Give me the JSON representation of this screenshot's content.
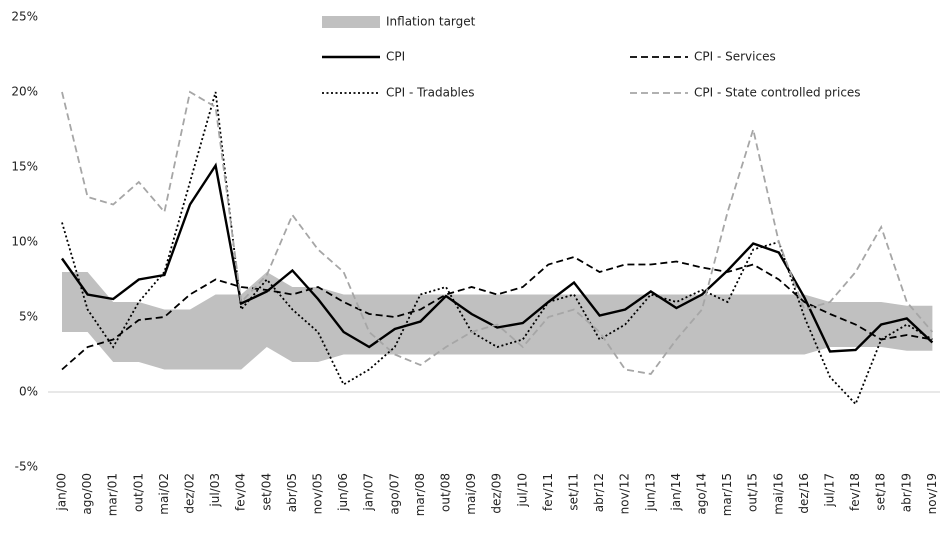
{
  "chart_data": {
    "type": "line",
    "categories": [
      "jan/00",
      "ago/00",
      "mar/01",
      "out/01",
      "mai/02",
      "dez/02",
      "jul/03",
      "fev/04",
      "set/04",
      "abr/05",
      "nov/05",
      "jun/06",
      "jan/07",
      "ago/07",
      "mar/08",
      "out/08",
      "mai/09",
      "dez/09",
      "jul/10",
      "fev/11",
      "set/11",
      "abr/12",
      "nov/12",
      "jun/13",
      "jan/14",
      "ago/14",
      "mar/15",
      "out/15",
      "mai/16",
      "dez/16",
      "jul/17",
      "fev/18",
      "set/18",
      "abr/19",
      "nov/19"
    ],
    "series": [
      {
        "name": "Inflation target",
        "color": "#c0c0c0",
        "kind": "band",
        "low": [
          4,
          4,
          2,
          2,
          1.5,
          1.5,
          1.5,
          1.5,
          3,
          2,
          2,
          2.5,
          2.5,
          2.5,
          2.5,
          2.5,
          2.5,
          2.5,
          2.5,
          2.5,
          2.5,
          2.5,
          2.5,
          2.5,
          2.5,
          2.5,
          2.5,
          2.5,
          2.5,
          2.5,
          3,
          3,
          3,
          2.75,
          2.75
        ],
        "high": [
          8,
          8,
          6,
          6,
          5.5,
          5.5,
          6.5,
          6.5,
          8,
          7,
          7,
          6.5,
          6.5,
          6.5,
          6.5,
          6.5,
          6.5,
          6.5,
          6.5,
          6.5,
          6.5,
          6.5,
          6.5,
          6.5,
          6.5,
          6.5,
          6.5,
          6.5,
          6.5,
          6.5,
          6,
          6,
          6,
          5.75,
          5.75
        ]
      },
      {
        "name": "CPI",
        "color": "#000000",
        "dash": "solid",
        "values": [
          8.9,
          6.5,
          6.2,
          7.5,
          7.8,
          12.5,
          15.1,
          5.9,
          6.7,
          8.1,
          6.2,
          4.0,
          3.0,
          4.2,
          4.7,
          6.4,
          5.2,
          4.3,
          4.6,
          6.0,
          7.3,
          5.1,
          5.5,
          6.7,
          5.6,
          6.5,
          8.1,
          9.9,
          9.3,
          6.3,
          2.7,
          2.8,
          4.5,
          4.9,
          3.3
        ]
      },
      {
        "name": "CPI - Services",
        "color": "#000000",
        "dash": "dashed",
        "values": [
          1.5,
          3.0,
          3.5,
          4.8,
          5.0,
          6.5,
          7.5,
          7.0,
          6.8,
          6.5,
          7.0,
          6.0,
          5.2,
          5.0,
          5.5,
          6.5,
          7.0,
          6.5,
          7.0,
          8.5,
          9.0,
          8.0,
          8.5,
          8.5,
          8.7,
          8.3,
          8.0,
          8.5,
          7.5,
          6.0,
          5.2,
          4.5,
          3.5,
          3.8,
          3.5
        ]
      },
      {
        "name": "CPI - Tradables",
        "color": "#000000",
        "dash": "dotted",
        "values": [
          11.3,
          5.5,
          3.0,
          6.0,
          8.0,
          14,
          20,
          5.5,
          7.5,
          5.5,
          4,
          0.5,
          1.5,
          3,
          6.5,
          7,
          4,
          3,
          3.5,
          6,
          6.5,
          3.5,
          4.5,
          6.5,
          6.0,
          6.8,
          6.0,
          9.5,
          10,
          5.0,
          1.0,
          -0.8,
          3.5,
          4.5,
          3.5
        ]
      },
      {
        "name": "CPI - State controlled prices",
        "color": "#a6a6a6",
        "dash": "dashed",
        "values": [
          20,
          13,
          12.5,
          14,
          12,
          20,
          19,
          6.0,
          7.8,
          11.8,
          9.5,
          8,
          4.0,
          2.5,
          1.8,
          3.0,
          4.0,
          4.5,
          3.0,
          5.0,
          5.5,
          4.0,
          1.5,
          1.2,
          3.5,
          5.5,
          12,
          17.5,
          10,
          5.5,
          6.0,
          8.0,
          11,
          6.0,
          4.0
        ]
      }
    ],
    "ylim": [
      -5,
      25
    ],
    "yticks": [
      {
        "value": -5,
        "label": "-5%"
      },
      {
        "value": 0,
        "label": "0%"
      },
      {
        "value": 5,
        "label": "5%"
      },
      {
        "value": 10,
        "label": "10%"
      },
      {
        "value": 15,
        "label": "15%"
      },
      {
        "value": 20,
        "label": "20%"
      },
      {
        "value": 25,
        "label": "25%"
      }
    ],
    "zero_line": true
  }
}
